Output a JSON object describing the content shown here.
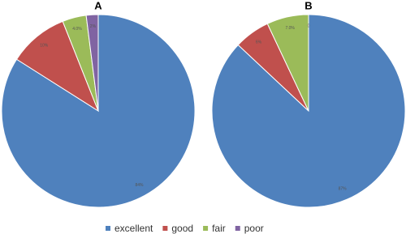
{
  "chart_data": [
    {
      "type": "pie",
      "title": "A",
      "categories": [
        "excellent",
        "good",
        "fair",
        "poor"
      ],
      "values": [
        84,
        10,
        4,
        2
      ],
      "value_labels": [
        "84%",
        "10%",
        "4.0%",
        "2%"
      ],
      "colors": [
        "#4f81bd",
        "#c0504d",
        "#9bbb59",
        "#8064a2"
      ],
      "legend": "bottom"
    },
    {
      "type": "pie",
      "title": "B",
      "categories": [
        "excellent",
        "good",
        "fair",
        "poor"
      ],
      "values": [
        87,
        6,
        7,
        0
      ],
      "value_labels": [
        "87%",
        "6%",
        "7.0%",
        "0"
      ],
      "colors": [
        "#4f81bd",
        "#c0504d",
        "#9bbb59",
        "#8064a2"
      ],
      "legend": "bottom"
    }
  ]
}
